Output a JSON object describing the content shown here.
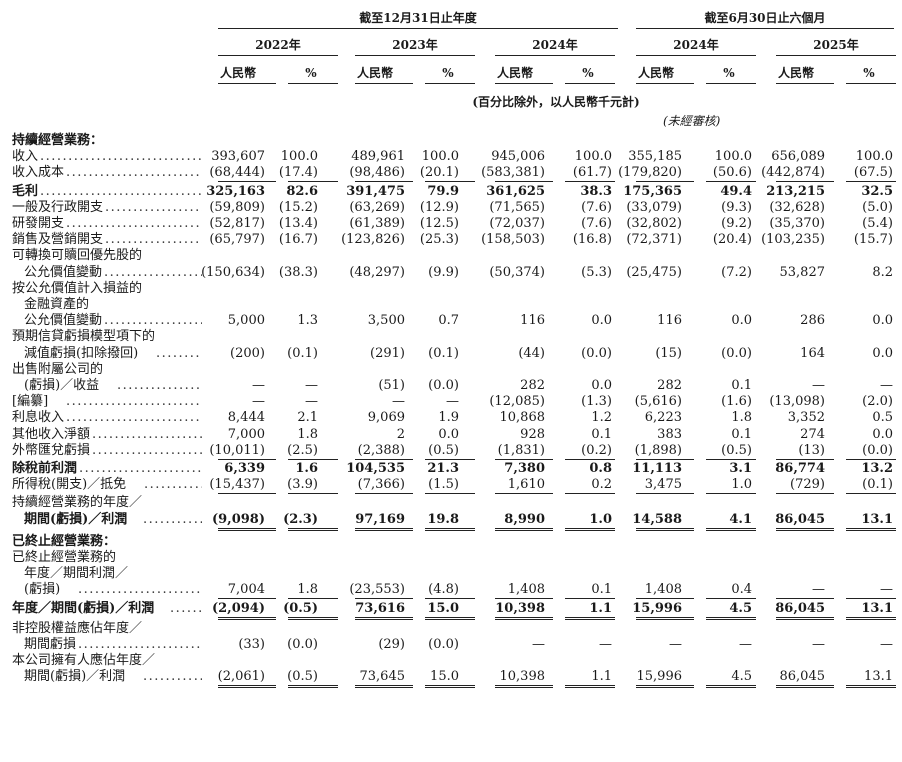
{
  "header": {
    "period_year": "截至12月31日止年度",
    "period_half": "截至6月30日止六個月",
    "years": [
      "2022年",
      "2023年",
      "2024年",
      "2024年",
      "2025年"
    ],
    "col_rmb": "人民幣",
    "col_pct": "%",
    "unit_note": "(百分比除外，以人民幣千元計)",
    "unaudited": "(未經審核)"
  },
  "sections": {
    "continuing": "持續經營業務：",
    "discontinued": "已終止經營業務："
  },
  "rows": [
    {
      "label": "收入",
      "v": [
        "393,607",
        "100.0",
        "489,961",
        "100.0",
        "945,006",
        "100.0",
        "355,185",
        "100.0",
        "656,089",
        "100.0"
      ]
    },
    {
      "label": "收入成本",
      "v": [
        "(68,444)",
        "(17.4)",
        "(98,486)",
        "(20.1)",
        "(583,381)",
        "(61.7)",
        "(179,820)",
        "(50.6)",
        "(442,874)",
        "(67.5)"
      ]
    },
    {
      "label": "毛利",
      "bold": true,
      "v": [
        "325,163",
        "82.6",
        "391,475",
        "79.9",
        "361,625",
        "38.3",
        "175,365",
        "49.4",
        "213,215",
        "32.5"
      ]
    },
    {
      "label": "一般及行政開支",
      "v": [
        "(59,809)",
        "(15.2)",
        "(63,269)",
        "(12.9)",
        "(71,565)",
        "(7.6)",
        "(33,079)",
        "(9.3)",
        "(32,628)",
        "(5.0)"
      ]
    },
    {
      "label": "研發開支",
      "v": [
        "(52,817)",
        "(13.4)",
        "(61,389)",
        "(12.5)",
        "(72,037)",
        "(7.6)",
        "(32,802)",
        "(9.2)",
        "(35,370)",
        "(5.4)"
      ]
    },
    {
      "label": "銷售及營銷開支",
      "v": [
        "(65,797)",
        "(16.7)",
        "(123,826)",
        "(25.3)",
        "(158,503)",
        "(16.8)",
        "(72,371)",
        "(20.4)",
        "(103,235)",
        "(15.7)"
      ]
    },
    {
      "label1": "可轉換可贖回優先股的",
      "label": "公允價值變動",
      "v": [
        "(150,634)",
        "(38.3)",
        "(48,297)",
        "(9.9)",
        "(50,374)",
        "(5.3)",
        "(25,475)",
        "(7.2)",
        "53,827",
        "8.2"
      ]
    },
    {
      "label1": "按公允價值計入損益的",
      "label2": "金融資產的",
      "label": "公允價值變動",
      "v": [
        "5,000",
        "1.3",
        "3,500",
        "0.7",
        "116",
        "0.0",
        "116",
        "0.0",
        "286",
        "0.0"
      ]
    },
    {
      "label1": "預期信貸虧損模型項下的",
      "label": "減值虧損(扣除撥回)",
      "v": [
        "(200)",
        "(0.1)",
        "(291)",
        "(0.1)",
        "(44)",
        "(0.0)",
        "(15)",
        "(0.0)",
        "164",
        "0.0"
      ]
    },
    {
      "label1": "出售附屬公司的",
      "label": "(虧損)／收益",
      "v": [
        "—",
        "—",
        "(51)",
        "(0.0)",
        "282",
        "0.0",
        "282",
        "0.1",
        "—",
        "—"
      ]
    },
    {
      "label": "[編纂]",
      "v": [
        "—",
        "—",
        "—",
        "—",
        "(12,085)",
        "(1.3)",
        "(5,616)",
        "(1.6)",
        "(13,098)",
        "(2.0)"
      ]
    },
    {
      "label": "利息收入",
      "v": [
        "8,444",
        "2.1",
        "9,069",
        "1.9",
        "10,868",
        "1.2",
        "6,223",
        "1.8",
        "3,352",
        "0.5"
      ]
    },
    {
      "label": "其他收入淨額",
      "v": [
        "7,000",
        "1.8",
        "2",
        "0.0",
        "928",
        "0.1",
        "383",
        "0.1",
        "274",
        "0.0"
      ]
    },
    {
      "label": "外幣匯兌虧損",
      "v": [
        "(10,011)",
        "(2.5)",
        "(2,388)",
        "(0.5)",
        "(1,831)",
        "(0.2)",
        "(1,898)",
        "(0.5)",
        "(13)",
        "(0.0)"
      ]
    },
    {
      "label": "除稅前利潤",
      "bold": true,
      "v": [
        "6,339",
        "1.6",
        "104,535",
        "21.3",
        "7,380",
        "0.8",
        "11,113",
        "3.1",
        "86,774",
        "13.2"
      ]
    },
    {
      "label": "所得稅(開支)／抵免",
      "v": [
        "(15,437)",
        "(3.9)",
        "(7,366)",
        "(1.5)",
        "1,610",
        "0.2",
        "3,475",
        "1.0",
        "(729)",
        "(0.1)"
      ]
    },
    {
      "label1": "持續經營業務的年度／",
      "label": "期間(虧損)／利潤",
      "bold": true,
      "v": [
        "(9,098)",
        "(2.3)",
        "97,169",
        "19.8",
        "8,990",
        "1.0",
        "14,588",
        "4.1",
        "86,045",
        "13.1"
      ]
    },
    {
      "label1": "已終止經營業務的",
      "label2": "年度／期間利潤／",
      "label": "(虧損)",
      "v": [
        "7,004",
        "1.8",
        "(23,553)",
        "(4.8)",
        "1,408",
        "0.1",
        "1,408",
        "0.4",
        "—",
        "—"
      ]
    },
    {
      "label": "年度／期間(虧損)／利潤",
      "bold": true,
      "v": [
        "(2,094)",
        "(0.5)",
        "73,616",
        "15.0",
        "10,398",
        "1.1",
        "15,996",
        "4.5",
        "86,045",
        "13.1"
      ]
    },
    {
      "label1": "非控股權益應佔年度／",
      "label": "期間虧損",
      "v": [
        "(33)",
        "(0.0)",
        "(29)",
        "(0.0)",
        "—",
        "—",
        "—",
        "—",
        "—",
        "—"
      ]
    },
    {
      "label1": "本公司擁有人應佔年度／",
      "label": "期間(虧損)／利潤",
      "v": [
        "(2,061)",
        "(0.5)",
        "73,645",
        "15.0",
        "10,398",
        "1.1",
        "15,996",
        "4.5",
        "86,045",
        "13.1"
      ]
    }
  ]
}
